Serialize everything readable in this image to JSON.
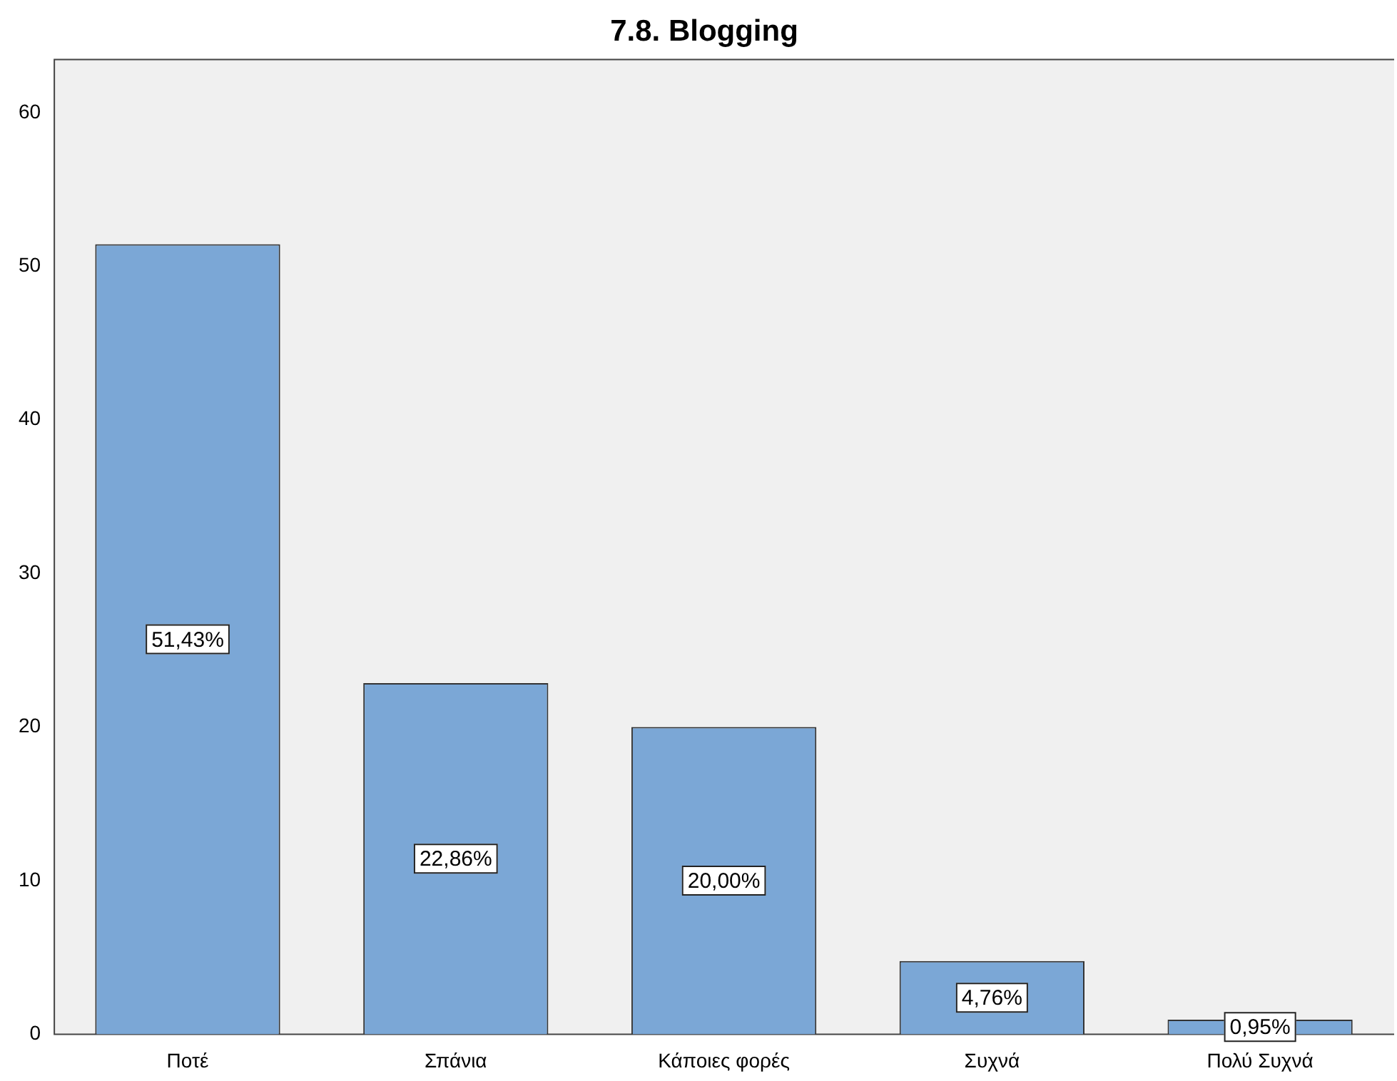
{
  "chart_data": {
    "type": "bar",
    "title": "7.8. Blogging",
    "categories": [
      "Ποτέ",
      "Σπάνια",
      "Κάποιες φορές",
      "Συχνά",
      "Πολύ Συχνά"
    ],
    "values": [
      51.43,
      22.86,
      20.0,
      4.76,
      0.95
    ],
    "value_labels": [
      "51,43%",
      "22,86%",
      "20,00%",
      "4,76%",
      "0,95%"
    ],
    "color": "#7ba7d6",
    "ylim": [
      0,
      63.5
    ],
    "yticks": [
      0,
      10,
      20,
      30,
      40,
      50,
      60
    ],
    "grid": false,
    "legend": false
  }
}
